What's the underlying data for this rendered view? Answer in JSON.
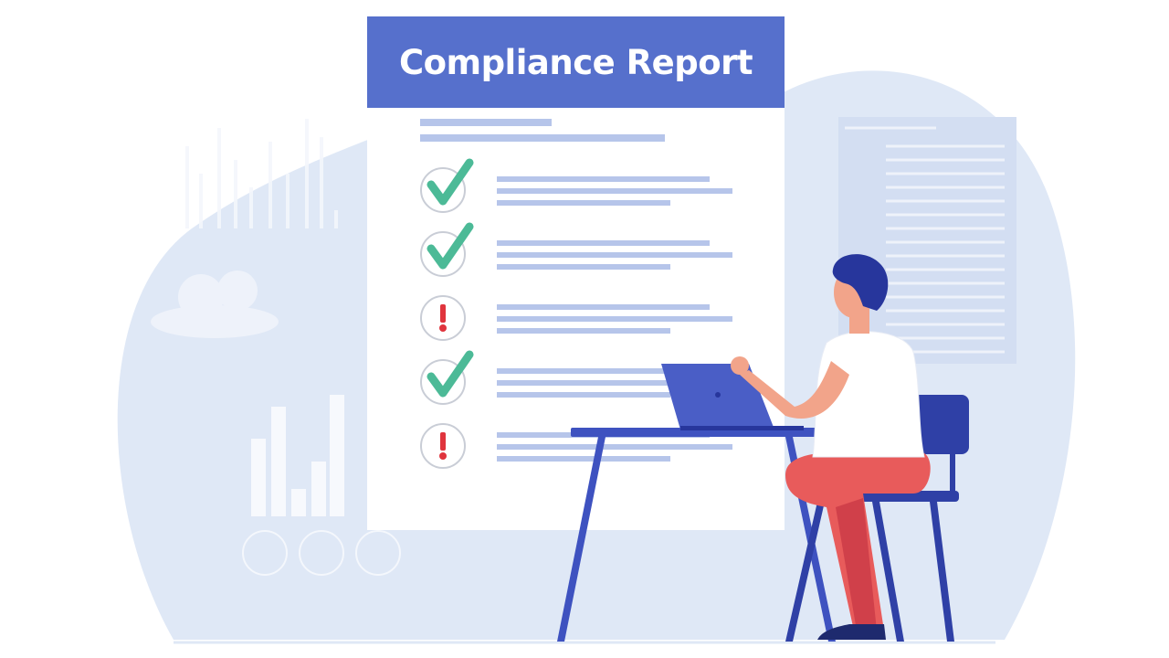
{
  "report": {
    "title": "Compliance Report",
    "items": [
      {
        "status": "passed",
        "icon": "checkmark-icon"
      },
      {
        "status": "passed",
        "icon": "checkmark-icon"
      },
      {
        "status": "warning",
        "icon": "exclamation-icon"
      },
      {
        "status": "passed",
        "icon": "checkmark-icon"
      },
      {
        "status": "warning",
        "icon": "exclamation-icon"
      }
    ]
  },
  "colors": {
    "header": "#5670cc",
    "check": "#4cba97",
    "warning": "#e0343d",
    "text_lines": "#b6c5ea",
    "background_blob": "#dfe8f6",
    "hair": "#27369c",
    "pants": "#e85b5b",
    "furniture": "#3e52c0"
  }
}
